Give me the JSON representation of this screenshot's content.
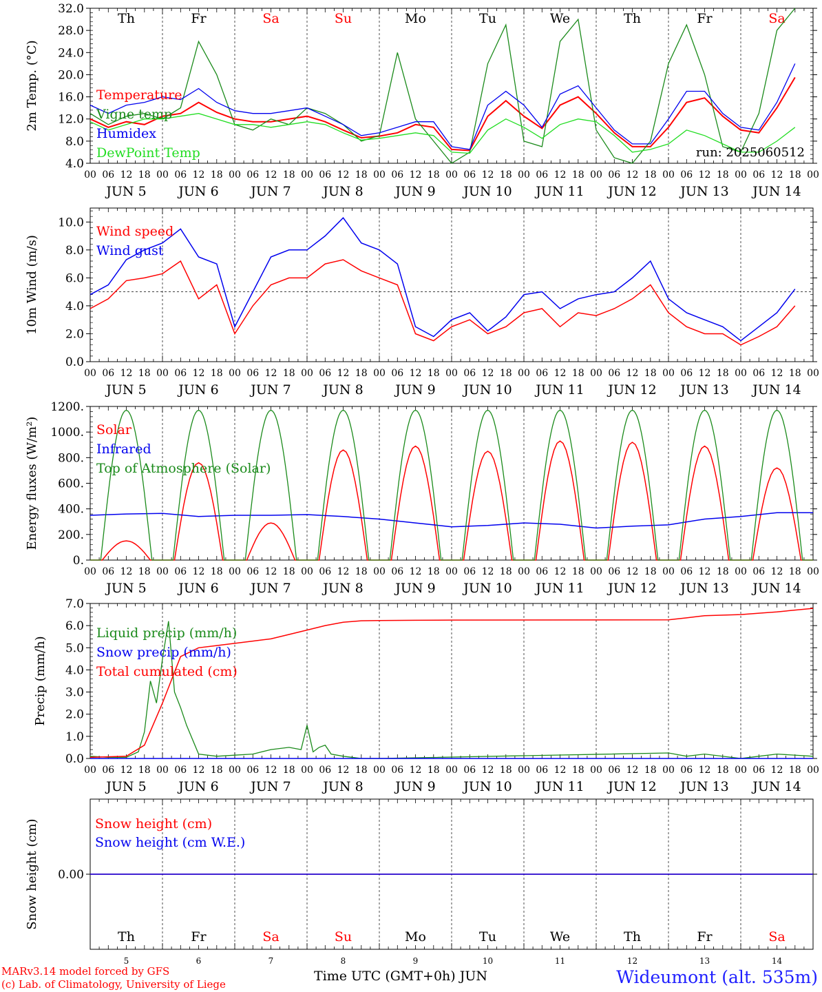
{
  "footer": {
    "model": "MARv3.14 model forced by GFS",
    "copyright": "(c) Lab. of Climatology, University of Liege",
    "time_axis_label": "Time UTC (GMT+0h) JUN",
    "station": "Wideumont (alt. 535m)"
  },
  "colors": {
    "red": "#ff0000",
    "blue": "#0000ee",
    "darkgreen": "#1a8a1a",
    "lightgreen": "#22dd22"
  },
  "time_axis": {
    "hour_ticks": [
      "00",
      "06",
      "12",
      "18"
    ],
    "date_labels": [
      "JUN  5",
      "JUN  6",
      "JUN  7",
      "JUN  8",
      "JUN  9",
      "JUN 10",
      "JUN 11",
      "JUN 12",
      "JUN 13",
      "JUN 14"
    ],
    "days": [
      {
        "abbr": "Th",
        "weekend": false,
        "num": "5"
      },
      {
        "abbr": "Fr",
        "weekend": false,
        "num": "6"
      },
      {
        "abbr": "Sa",
        "weekend": true,
        "num": "7"
      },
      {
        "abbr": "Su",
        "weekend": true,
        "num": "8"
      },
      {
        "abbr": "Mo",
        "weekend": false,
        "num": "9"
      },
      {
        "abbr": "Tu",
        "weekend": false,
        "num": "10"
      },
      {
        "abbr": "We",
        "weekend": false,
        "num": "11"
      },
      {
        "abbr": "Th",
        "weekend": false,
        "num": "12"
      },
      {
        "abbr": "Fr",
        "weekend": false,
        "num": "13"
      },
      {
        "abbr": "Sa",
        "weekend": true,
        "num": "14"
      }
    ]
  },
  "chart_data": [
    {
      "type": "line",
      "id": "temp",
      "ylabel": "2m Temp. (°C)",
      "ylim": [
        4,
        32
      ],
      "yticks": [
        "4.0",
        "8.0",
        "12.0",
        "16.0",
        "20.0",
        "24.0",
        "28.0",
        "32.0"
      ],
      "ytick_values": [
        4,
        8,
        12,
        16,
        20,
        24,
        28,
        32
      ],
      "annotation": "run: 2025060512",
      "show_days": true,
      "x_unit": "hours since JUN 5 00 UTC",
      "series": [
        {
          "name": "Temperature",
          "color": "red",
          "x": [
            0,
            6,
            12,
            18,
            24,
            30,
            36,
            42,
            48,
            54,
            60,
            66,
            72,
            78,
            84,
            90,
            96,
            102,
            108,
            114,
            120,
            126,
            132,
            138,
            144,
            150,
            156,
            162,
            168,
            174,
            180,
            186,
            192,
            198,
            204,
            210,
            216,
            222,
            228,
            234
          ],
          "y": [
            12,
            10.5,
            11.5,
            11,
            12.5,
            13,
            15,
            13.2,
            12,
            11.5,
            11.5,
            12,
            12.5,
            11.5,
            10,
            8.6,
            8.9,
            9.5,
            11,
            10.5,
            6.5,
            6.3,
            12.5,
            15.3,
            12.5,
            10.3,
            14.5,
            16,
            13,
            9.5,
            7,
            7,
            10.5,
            15,
            15.8,
            12.5,
            10,
            9.5,
            14,
            19.5
          ]
        },
        {
          "name": "Vigne temp",
          "color": "darkgreen",
          "x": [
            0,
            6,
            12,
            18,
            24,
            30,
            36,
            42,
            48,
            54,
            60,
            66,
            72,
            78,
            84,
            90,
            96,
            102,
            108,
            114,
            120,
            126,
            132,
            138,
            144,
            150,
            156,
            162,
            168,
            174,
            180,
            186,
            192,
            198,
            204,
            210,
            216,
            222,
            228,
            234
          ],
          "y": [
            13,
            11,
            12.5,
            13,
            12,
            14,
            26,
            20,
            11,
            10,
            12,
            11,
            14,
            13,
            11,
            8,
            9,
            24,
            12,
            8,
            4,
            6,
            22,
            29,
            8,
            7,
            26,
            30,
            10,
            5,
            3,
            8,
            22,
            29,
            20,
            7,
            6,
            13,
            28,
            35
          ]
        },
        {
          "name": "Humidex",
          "color": "blue",
          "x": [
            0,
            6,
            12,
            18,
            24,
            30,
            36,
            42,
            48,
            54,
            60,
            66,
            72,
            78,
            84,
            90,
            96,
            102,
            108,
            114,
            120,
            126,
            132,
            138,
            144,
            150,
            156,
            162,
            168,
            174,
            180,
            186,
            192,
            198,
            204,
            210,
            216,
            222,
            228,
            234
          ],
          "y": [
            14.5,
            13,
            14.5,
            15,
            16,
            15.5,
            17.5,
            15,
            13.5,
            13,
            13,
            13.5,
            14,
            12.5,
            11,
            9,
            9.5,
            10.5,
            11.5,
            11.5,
            7,
            6.5,
            14.5,
            17,
            14.5,
            10.5,
            16.5,
            18,
            14,
            10,
            7.5,
            7.5,
            12,
            17,
            17,
            13,
            10.5,
            10,
            15,
            22
          ]
        },
        {
          "name": "DewPoint Temp",
          "color": "lightgreen",
          "x": [
            0,
            6,
            12,
            18,
            24,
            30,
            36,
            42,
            48,
            54,
            60,
            66,
            72,
            78,
            84,
            90,
            96,
            102,
            108,
            114,
            120,
            126,
            132,
            138,
            144,
            150,
            156,
            162,
            168,
            174,
            180,
            186,
            192,
            198,
            204,
            210,
            216,
            222,
            228,
            234
          ],
          "y": [
            11.5,
            10,
            11,
            12,
            12,
            12.5,
            13,
            12,
            11,
            11,
            10.5,
            11,
            11.5,
            11,
            9.5,
            8.2,
            8.5,
            9,
            9.5,
            9,
            6,
            5.8,
            10,
            12,
            10.5,
            8.5,
            11,
            12,
            11.5,
            9,
            6,
            6.5,
            7.5,
            10,
            9,
            7.5,
            6,
            6,
            8,
            10.5
          ]
        }
      ]
    },
    {
      "type": "line",
      "id": "wind",
      "ylabel": "10m Wind (m/s)",
      "ylim": [
        0,
        11
      ],
      "yticks": [
        "0.0",
        "2.0",
        "4.0",
        "6.0",
        "8.0",
        "10.0"
      ],
      "ytick_values": [
        0,
        2,
        4,
        6,
        8,
        10
      ],
      "hline": 5,
      "show_days": false,
      "x_unit": "hours since JUN 5 00 UTC",
      "series": [
        {
          "name": "Wind speed",
          "color": "red",
          "x": [
            0,
            6,
            12,
            18,
            24,
            30,
            36,
            42,
            48,
            54,
            60,
            66,
            72,
            78,
            84,
            90,
            96,
            102,
            108,
            114,
            120,
            126,
            132,
            138,
            144,
            150,
            156,
            162,
            168,
            174,
            180,
            186,
            192,
            198,
            204,
            210,
            216,
            222,
            228,
            234
          ],
          "y": [
            3.8,
            4.5,
            5.8,
            6.0,
            6.3,
            7.2,
            4.5,
            5.5,
            2.0,
            4.0,
            5.5,
            6.0,
            6.0,
            7.0,
            7.3,
            6.5,
            6.0,
            5.5,
            2.0,
            1.5,
            2.5,
            3.0,
            2.0,
            2.5,
            3.5,
            3.8,
            2.5,
            3.5,
            3.3,
            3.8,
            4.5,
            5.5,
            3.5,
            2.5,
            2.0,
            2.0,
            1.2,
            1.8,
            2.5,
            4.0
          ]
        },
        {
          "name": "Wind gust",
          "color": "blue",
          "x": [
            0,
            6,
            12,
            18,
            24,
            30,
            36,
            42,
            48,
            54,
            60,
            66,
            72,
            78,
            84,
            90,
            96,
            102,
            108,
            114,
            120,
            126,
            132,
            138,
            144,
            150,
            156,
            162,
            168,
            174,
            180,
            186,
            192,
            198,
            204,
            210,
            216,
            222,
            228,
            234
          ],
          "y": [
            4.8,
            5.5,
            7.3,
            8.0,
            8.5,
            9.5,
            7.5,
            7.0,
            2.5,
            5.0,
            7.5,
            8.0,
            8.0,
            9.0,
            10.3,
            8.5,
            8.0,
            7.0,
            2.5,
            1.8,
            3.0,
            3.5,
            2.2,
            3.2,
            4.8,
            5.0,
            3.8,
            4.5,
            4.8,
            5.0,
            6.0,
            7.2,
            4.5,
            3.5,
            3.0,
            2.5,
            1.5,
            2.5,
            3.5,
            5.2
          ]
        }
      ]
    },
    {
      "type": "line",
      "id": "energy",
      "ylabel": "Energy fluxes (W/m²)",
      "ylim": [
        0,
        1200
      ],
      "yticks": [
        "0.",
        "200.",
        "400.",
        "600.",
        "800.",
        "1000.",
        "1200."
      ],
      "ytick_values": [
        0,
        200,
        400,
        600,
        800,
        1000,
        1200
      ],
      "show_days": false,
      "x_unit": "hours since JUN 5 00 UTC",
      "series": [
        {
          "name": "Solar",
          "color": "red",
          "peaks": [
            150,
            760,
            290,
            860,
            890,
            850,
            930,
            920,
            890,
            720
          ]
        },
        {
          "name": "Infrared",
          "color": "blue",
          "x": [
            0,
            12,
            24,
            36,
            48,
            60,
            72,
            84,
            96,
            108,
            120,
            132,
            144,
            156,
            168,
            180,
            192,
            204,
            216,
            228,
            240
          ],
          "y": [
            350,
            360,
            365,
            340,
            350,
            350,
            355,
            340,
            320,
            290,
            260,
            270,
            290,
            280,
            250,
            265,
            275,
            320,
            340,
            370,
            370
          ]
        },
        {
          "name": "Top of Atmosphere (Solar)",
          "color": "darkgreen",
          "peak": 1170
        }
      ]
    },
    {
      "type": "line",
      "id": "precip",
      "ylabel": "Precip (mm/h)",
      "ylim": [
        0,
        7
      ],
      "yticks": [
        "0.0",
        "1.0",
        "2.0",
        "3.0",
        "4.0",
        "5.0",
        "6.0",
        "7.0"
      ],
      "ytick_values": [
        0,
        1,
        2,
        3,
        4,
        5,
        6,
        7
      ],
      "show_days": false,
      "x_unit": "hours since JUN 5 00 UTC",
      "series": [
        {
          "name": "Liquid precip (mm/h)",
          "color": "darkgreen",
          "x": [
            0,
            6,
            12,
            16,
            18,
            20,
            22,
            24,
            26,
            28,
            30,
            32,
            36,
            42,
            48,
            54,
            60,
            66,
            70,
            72,
            74,
            76,
            78,
            80,
            84,
            90,
            96,
            192,
            198,
            204,
            216,
            222,
            228,
            240
          ],
          "y": [
            0.1,
            0.05,
            0.05,
            0.3,
            1.2,
            3.5,
            2.5,
            4.5,
            6.2,
            3.0,
            2.3,
            1.5,
            0.2,
            0.1,
            0.15,
            0.2,
            0.4,
            0.5,
            0.4,
            1.5,
            0.3,
            0.5,
            0.6,
            0.2,
            0.1,
            0,
            0,
            0.25,
            0.1,
            0.2,
            0,
            0.1,
            0.2,
            0.1
          ]
        },
        {
          "name": "Snow precip (mm/h)",
          "color": "blue",
          "x": [
            0,
            240
          ],
          "y": [
            0,
            0
          ]
        },
        {
          "name": "Total cumulated (cm)",
          "color": "red",
          "x": [
            0,
            12,
            18,
            24,
            30,
            36,
            42,
            48,
            54,
            60,
            66,
            72,
            78,
            84,
            90,
            96,
            108,
            120,
            192,
            198,
            204,
            216,
            228,
            240
          ],
          "y": [
            0.05,
            0.1,
            0.6,
            2.5,
            4.6,
            5.0,
            5.1,
            5.2,
            5.3,
            5.4,
            5.6,
            5.8,
            6.0,
            6.15,
            6.22,
            6.23,
            6.24,
            6.25,
            6.26,
            6.35,
            6.45,
            6.5,
            6.62,
            6.78
          ]
        }
      ]
    },
    {
      "type": "line",
      "id": "snow",
      "ylabel": "Snow height (cm)",
      "yticks": [
        "0.00"
      ],
      "show_days": true,
      "x_unit": "hours since JUN 5 00 UTC",
      "series": [
        {
          "name": "Snow height (cm)",
          "color": "red",
          "x": [
            0,
            240
          ],
          "y": [
            0,
            0
          ]
        },
        {
          "name": "Snow height (cm W.E.)",
          "color": "blue",
          "x": [
            0,
            240
          ],
          "y": [
            0,
            0
          ]
        }
      ]
    }
  ]
}
